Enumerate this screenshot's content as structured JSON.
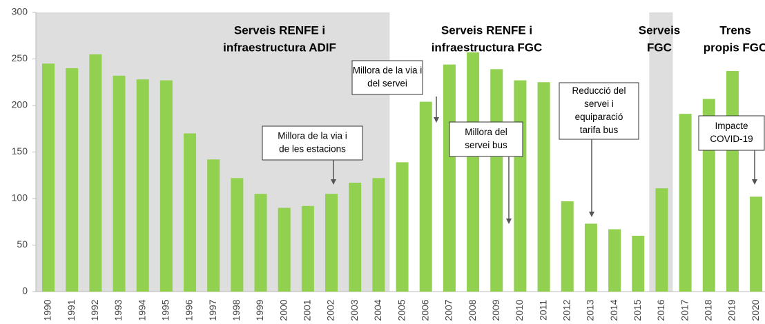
{
  "chart_data": {
    "type": "bar",
    "categories": [
      "1990",
      "1991",
      "1992",
      "1993",
      "1994",
      "1995",
      "1996",
      "1997",
      "1998",
      "1999",
      "2000",
      "2001",
      "2002",
      "2003",
      "2004",
      "2005",
      "2006",
      "2007",
      "2008",
      "2009",
      "2010",
      "2011",
      "2012",
      "2013",
      "2014",
      "2015",
      "2016",
      "2017",
      "2018",
      "2019",
      "2020"
    ],
    "values": [
      245,
      240,
      255,
      232,
      228,
      227,
      170,
      142,
      122,
      105,
      90,
      92,
      105,
      117,
      122,
      139,
      204,
      244,
      257,
      239,
      227,
      225,
      97,
      73,
      67,
      60,
      111,
      191,
      207,
      237,
      102
    ],
    "color": "#92d050",
    "ylim": [
      0,
      300
    ],
    "yticks": [
      0,
      50,
      100,
      150,
      200,
      250,
      300
    ],
    "regions": [
      {
        "lines": [
          "Serveis RENFE i",
          "infraestructura ADIF"
        ],
        "start": "1990",
        "end": "2004",
        "shaded": true
      },
      {
        "lines": [
          "Serveis RENFE i",
          "infraestructura FGC"
        ],
        "start": "2005",
        "end": "2015",
        "shaded": false
      },
      {
        "lines": [
          "Serveis",
          "FGC"
        ],
        "start": "2016",
        "end": "2016",
        "shaded": true
      },
      {
        "lines": [
          "Trens",
          "propis FGC"
        ],
        "start": "2017",
        "end": "2020",
        "shaded": false
      }
    ],
    "annotations": [
      {
        "lines": [
          "Millora de la via i",
          "de les estacions"
        ]
      },
      {
        "lines": [
          "Millora de la via i",
          "del servei"
        ]
      },
      {
        "lines": [
          "Millora del",
          "servei bus"
        ]
      },
      {
        "lines": [
          "Reducció del",
          "servei i",
          "equiparació",
          "tarifa bus"
        ]
      },
      {
        "lines": [
          "Impacte",
          "COVID-19"
        ]
      }
    ]
  }
}
